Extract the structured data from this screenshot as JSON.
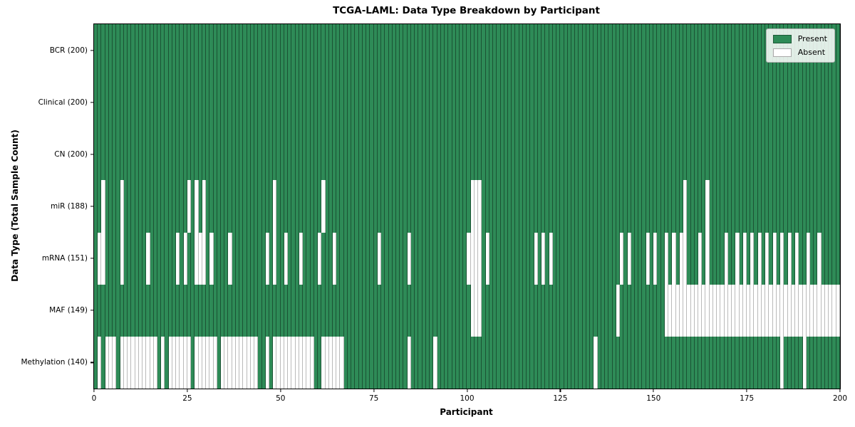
{
  "title": "TCGA-LAML: Data Type Breakdown by Participant",
  "xlabel": "Participant",
  "ylabel": "Data Type (Total Sample Count)",
  "legend": {
    "present_label": "Present",
    "absent_label": "Absent"
  },
  "colors": {
    "present": "#2e8b57",
    "absent": "#ffffff",
    "present_edge": "rgba(0,0,0,0.40)",
    "absent_edge": "rgba(130,130,130,0.55)"
  },
  "chart_data": {
    "type": "heatmap",
    "title": "TCGA-LAML: Data Type Breakdown by Participant",
    "xlabel": "Participant",
    "ylabel": "Data Type (Total Sample Count)",
    "x_range": [
      0,
      200
    ],
    "x_ticks": [
      0,
      25,
      50,
      75,
      100,
      125,
      150,
      175,
      200
    ],
    "n_participants": 200,
    "legend_position": "upper right",
    "grid": false,
    "rows": [
      {
        "name": "BCR",
        "label": "BCR (200)",
        "present_count": 200,
        "absent": []
      },
      {
        "name": "Clinical",
        "label": "Clinical (200)",
        "present_count": 200,
        "absent": []
      },
      {
        "name": "CN",
        "label": "CN (200)",
        "present_count": 200,
        "absent": []
      },
      {
        "name": "miR",
        "label": "miR (188)",
        "present_count": 188,
        "absent": [
          2,
          7,
          25,
          27,
          29,
          48,
          61,
          101,
          102,
          103,
          158,
          164
        ]
      },
      {
        "name": "mRNA",
        "label": "mRNA (151)",
        "present_count": 151,
        "absent": [
          1,
          2,
          7,
          14,
          22,
          24,
          27,
          28,
          29,
          31,
          36,
          46,
          48,
          51,
          55,
          60,
          64,
          76,
          84,
          100,
          101,
          102,
          103,
          105,
          118,
          120,
          122,
          141,
          143,
          148,
          150,
          153,
          155,
          157,
          158,
          162,
          164,
          169,
          172,
          174,
          176,
          178,
          180,
          182,
          184,
          186,
          188,
          191,
          194
        ]
      },
      {
        "name": "MAF",
        "label": "MAF (149)",
        "present_count": 149,
        "absent": [
          101,
          102,
          103,
          140,
          153,
          154,
          155,
          156,
          157,
          158,
          159,
          160,
          161,
          162,
          163,
          164,
          165,
          166,
          167,
          168,
          169,
          170,
          171,
          172,
          173,
          174,
          175,
          176,
          177,
          178,
          179,
          180,
          181,
          182,
          183,
          184,
          185,
          186,
          187,
          188,
          189,
          190,
          191,
          192,
          193,
          194,
          195,
          196,
          197,
          198,
          199
        ]
      },
      {
        "name": "Methylation",
        "label": "Methylation (140)",
        "present_count": 140,
        "absent": [
          1,
          3,
          4,
          5,
          7,
          8,
          9,
          10,
          11,
          12,
          13,
          14,
          15,
          16,
          18,
          20,
          21,
          22,
          23,
          24,
          25,
          27,
          28,
          29,
          30,
          31,
          32,
          34,
          35,
          36,
          37,
          38,
          39,
          40,
          41,
          42,
          43,
          46,
          48,
          49,
          50,
          51,
          52,
          53,
          54,
          55,
          56,
          57,
          58,
          61,
          62,
          63,
          64,
          65,
          66,
          84,
          91,
          134,
          184,
          190
        ]
      }
    ]
  }
}
